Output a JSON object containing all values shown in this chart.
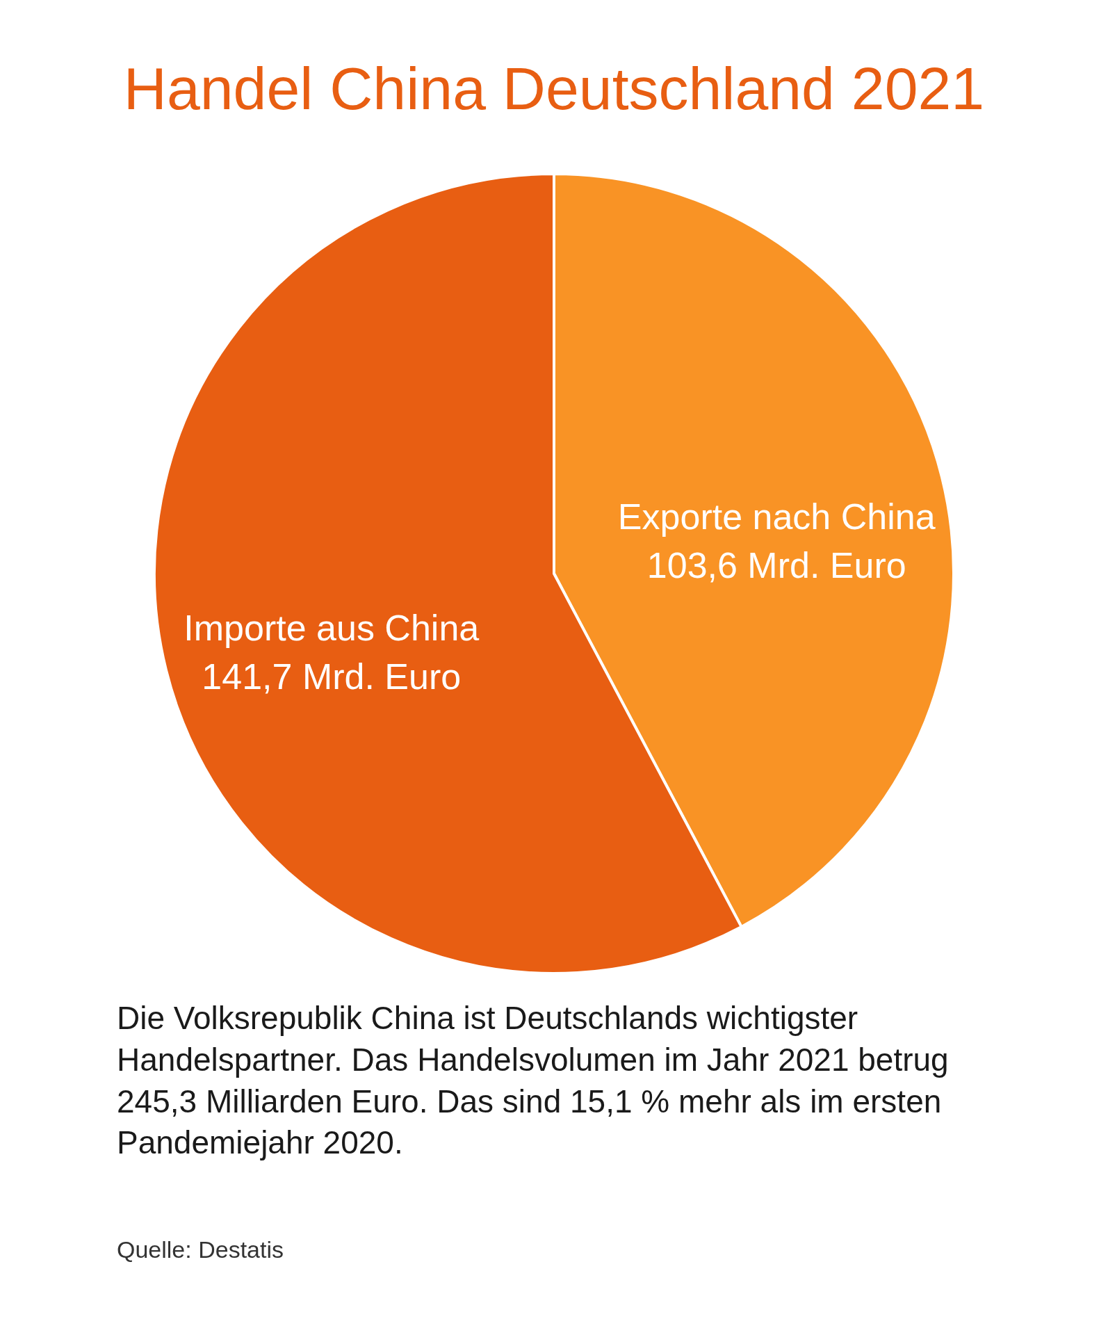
{
  "chart_data": {
    "type": "pie",
    "title": "Handel China Deutschland 2021",
    "categories": [
      "Exporte nach China",
      "Importe aus China"
    ],
    "values": [
      103.6,
      141.7
    ],
    "colors": [
      "#f99325",
      "#e85e12"
    ],
    "value_labels": [
      "103,6 Mrd. Euro",
      "141,7 Mrd. Euro"
    ],
    "annotations": [
      "Die Volksrepublik China ist Deutschlands wichtigster Handelspartner. Das Handelsvolumen im Jahr 2021 betrug 245,3 Milliarden Euro. Das sind 15,1 % mehr als im ersten Pandemiejahr 2020.",
      "Quelle: Destatis"
    ]
  }
}
